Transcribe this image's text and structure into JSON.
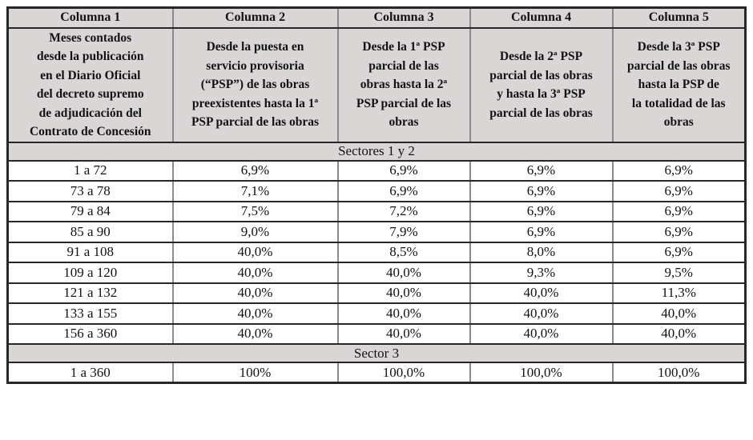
{
  "colors": {
    "page-bg": "#ffffff",
    "header-bg": "#d9d6d5",
    "grid-dark": "#272727",
    "grid-light": "#8a8a8a",
    "text": "#121212"
  },
  "table": {
    "column_headers": [
      "Columna 1",
      "Columna 2",
      "Columna 3",
      "Columna 4",
      "Columna 5"
    ],
    "column_descriptions": [
      "Meses contados\ndesde la publicación\nen el Diario Oficial\ndel decreto supremo\nde adjudicación del\nContrato de Concesión",
      "Desde la puesta en\nservicio provisoria\n(“PSP”) de las obras\npreexistentes hasta la 1ª\nPSP parcial de las obras",
      "Desde la 1ª PSP\nparcial de las\nobras hasta la 2ª\nPSP parcial de las\nobras",
      "Desde la 2ª PSP\nparcial de las obras\ny hasta la 3ª PSP\nparcial de las obras",
      "Desde la 3ª PSP\nparcial de las obras\nhasta la PSP de\nla totalidad de las\nobras"
    ],
    "sections": [
      {
        "label": "Sectores 1 y 2",
        "rows": [
          [
            "1 a 72",
            "6,9%",
            "6,9%",
            "6,9%",
            "6,9%"
          ],
          [
            "73 a 78",
            "7,1%",
            "6,9%",
            "6,9%",
            "6,9%"
          ],
          [
            "79 a 84",
            "7,5%",
            "7,2%",
            "6,9%",
            "6,9%"
          ],
          [
            "85 a 90",
            "9,0%",
            "7,9%",
            "6,9%",
            "6,9%"
          ],
          [
            "91 a 108",
            "40,0%",
            "8,5%",
            "8,0%",
            "6,9%"
          ],
          [
            "109 a 120",
            "40,0%",
            "40,0%",
            "9,3%",
            "9,5%"
          ],
          [
            "121 a 132",
            "40,0%",
            "40,0%",
            "40,0%",
            "11,3%"
          ],
          [
            "133 a 155",
            "40,0%",
            "40,0%",
            "40,0%",
            "40,0%"
          ],
          [
            "156 a 360",
            "40,0%",
            "40,0%",
            "40,0%",
            "40,0%"
          ]
        ]
      },
      {
        "label": "Sector 3",
        "rows": [
          [
            "1 a 360",
            "100%",
            "100,0%",
            "100,0%",
            "100,0%"
          ]
        ]
      }
    ]
  }
}
